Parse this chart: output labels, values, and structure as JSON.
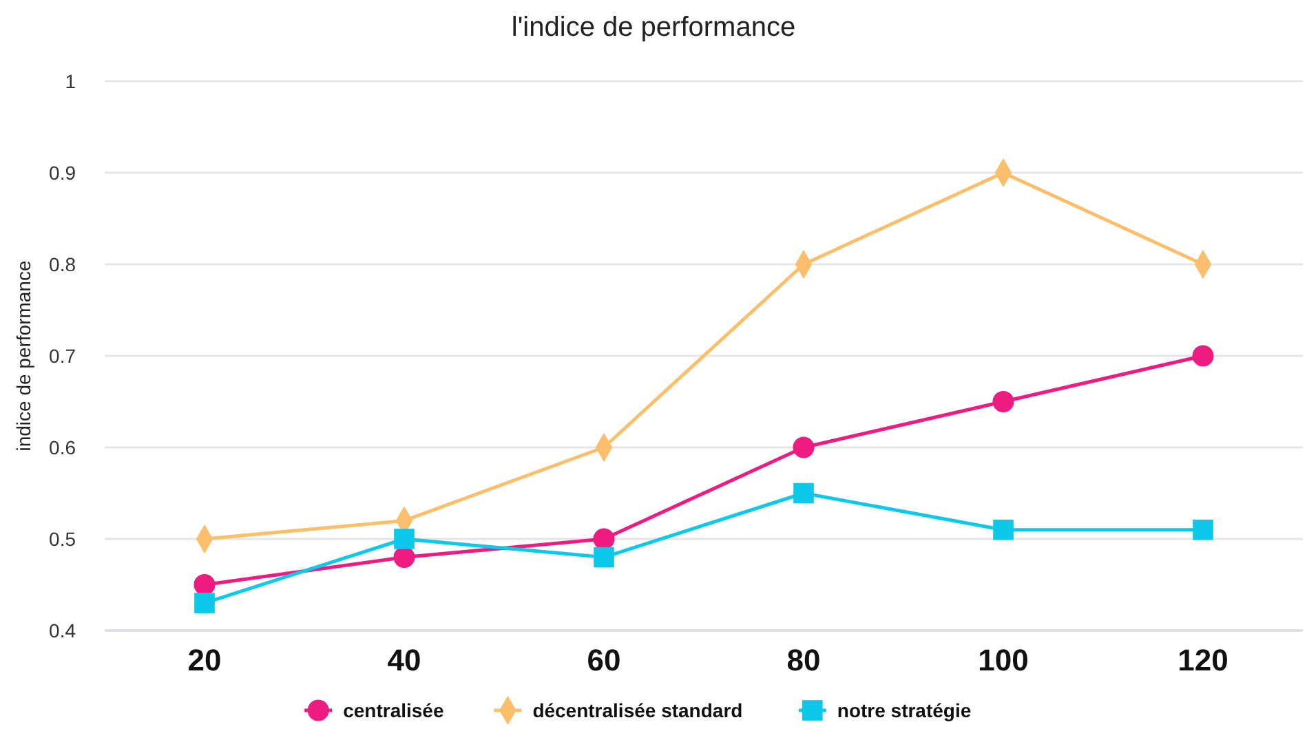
{
  "chart_data": {
    "type": "line",
    "title": "l'indice de performance",
    "ylabel": "indice de performance",
    "categories": [
      "20",
      "40",
      "60",
      "80",
      "100",
      "120"
    ],
    "series": [
      {
        "name": "centralisée",
        "color": "#ee1c80",
        "marker": "circle",
        "values": [
          0.45,
          0.48,
          0.5,
          0.6,
          0.65,
          0.7
        ]
      },
      {
        "name": "décentralisée standard",
        "color": "#fbbf6b",
        "marker": "diamond",
        "values": [
          0.5,
          0.52,
          0.6,
          0.8,
          0.9,
          0.8
        ]
      },
      {
        "name": "notre stratégie",
        "color": "#0ec8ea",
        "marker": "square",
        "values": [
          0.43,
          0.5,
          0.48,
          0.55,
          0.51,
          0.51
        ]
      }
    ],
    "ylim": [
      0.4,
      1
    ],
    "yticks": [
      0.4,
      0.5,
      0.6,
      0.7,
      0.8,
      0.9,
      1
    ],
    "grid": "y",
    "legend": "bottom"
  }
}
